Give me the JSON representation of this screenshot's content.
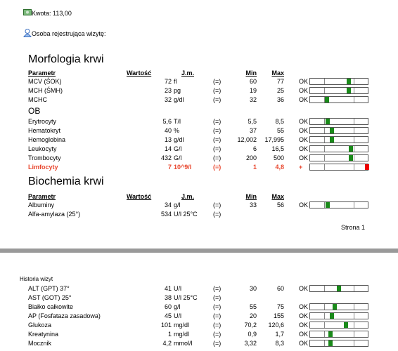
{
  "header": {
    "amount": "Kwota: 113,00",
    "registrar": "Osoba rejestrująca wizytę:"
  },
  "sections": [
    {
      "title": "Morfologia krwi",
      "columns": [
        "Parametr",
        "Wartość",
        "J.m.",
        "Min",
        "Max"
      ],
      "groups": [
        {
          "rows": [
            {
              "cells": [
                "MCV (ŚOK)",
                "72",
                "fl",
                "(=)",
                "60",
                "77",
                "OK"
              ]
            },
            {
              "cells": [
                "MCH (ŚMH)",
                "23",
                "pg",
                "(=)",
                "19",
                "25",
                "OK"
              ]
            },
            {
              "cells": [
                "MCHC",
                "32",
                "g/dl",
                "(=)",
                "32",
                "36",
                "OK"
              ]
            }
          ]
        },
        {
          "title": "OB",
          "rows": [
            {
              "cells": [
                "Erytrocyty",
                "5,6",
                "T/l",
                "(=)",
                "5,5",
                "8,5",
                "OK"
              ]
            },
            {
              "cells": [
                "Hematokryt",
                "40",
                "%",
                "(=)",
                "37",
                "55",
                "OK"
              ]
            },
            {
              "cells": [
                "Hemoglobina",
                "13",
                "g/dl",
                "(=)",
                "12,002",
                "17,995",
                "OK"
              ]
            },
            {
              "cells": [
                "Leukocyty",
                "14",
                "G/l",
                "(=)",
                "6",
                "16,5",
                "OK"
              ]
            },
            {
              "cells": [
                "Trombocyty",
                "432",
                "G/l",
                "(=)",
                "200",
                "500",
                "OK"
              ]
            },
            {
              "cells": [
                "Limfocyty",
                "7",
                "10^9/l",
                "(=)",
                "1",
                "4,8",
                "+"
              ],
              "alert": true
            }
          ]
        }
      ]
    },
    {
      "title": "Biochemia krwi",
      "columns": [
        "Parametr",
        "Wartość",
        "J.m.",
        "Min",
        "Max"
      ],
      "groups": [
        {
          "rows": [
            {
              "cells": [
                "Albuminy",
                "34",
                "g/l",
                "(=)",
                "33",
                "56",
                "OK"
              ]
            },
            {
              "cells": [
                "Alfa-amylaza (25°)",
                "534",
                "U/l 25°C",
                "(=)",
                null,
                null,
                null
              ]
            }
          ]
        }
      ]
    }
  ],
  "footer": {
    "page": "Strona 1"
  },
  "history": {
    "title": "Historia wizyt",
    "rows": [
      {
        "cells": [
          "ALT (GPT) 37°",
          "41",
          "U/l",
          "(=)",
          "30",
          "60",
          "OK"
        ]
      },
      {
        "cells": [
          "AST (GOT) 25°",
          "38",
          "U/l 25°C",
          "(=)",
          null,
          null,
          null
        ]
      },
      {
        "cells": [
          "Białko całkowite",
          "60",
          "g/l",
          "(=)",
          "55",
          "75",
          "OK"
        ]
      },
      {
        "cells": [
          "AP (Fosfataza zasadowa)",
          "45",
          "U/l",
          "(=)",
          "20",
          "155",
          "OK"
        ]
      },
      {
        "cells": [
          "Glukoza",
          "101",
          "mg/dl",
          "(=)",
          "70,2",
          "120,6",
          "OK"
        ]
      },
      {
        "cells": [
          "Kreatynina",
          "1",
          "mg/dl",
          "(=)",
          "0,9",
          "1,7",
          "OK"
        ]
      },
      {
        "cells": [
          "Mocznik",
          "4,2",
          "mmol/l",
          "(=)",
          "3,32",
          "8,3",
          "OK"
        ]
      }
    ]
  }
}
